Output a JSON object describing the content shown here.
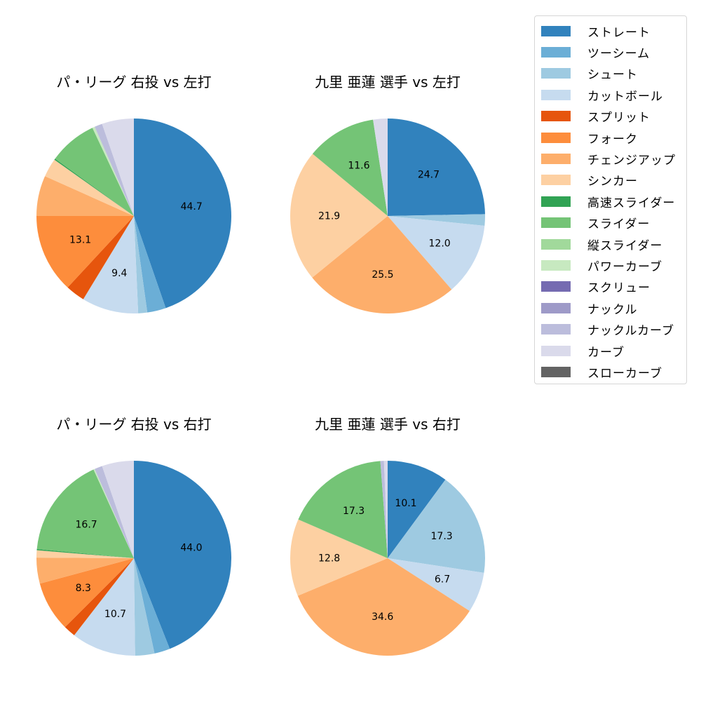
{
  "chart_data": [
    {
      "type": "pie",
      "title": "パ・リーグ 右投 vs 左打",
      "startangle": 90,
      "direction": "clockwise",
      "slices": [
        {
          "name": "ストレート",
          "value": 44.7,
          "label": "44.7"
        },
        {
          "name": "ツーシーム",
          "value": 3.1,
          "label": null
        },
        {
          "name": "シュート",
          "value": 1.5,
          "label": null
        },
        {
          "name": "カットボール",
          "value": 9.4,
          "label": "9.4"
        },
        {
          "name": "スプリット",
          "value": 3.2,
          "label": null
        },
        {
          "name": "フォーク",
          "value": 13.1,
          "label": "13.1"
        },
        {
          "name": "チェンジアップ",
          "value": 6.7,
          "label": null
        },
        {
          "name": "シンカー",
          "value": 3.1,
          "label": null
        },
        {
          "name": "高速スライダー",
          "value": 0.2,
          "label": null
        },
        {
          "name": "スライダー",
          "value": 8.0,
          "label": null
        },
        {
          "name": "パワーカーブ",
          "value": 0.4,
          "label": null
        },
        {
          "name": "ナックルカーブ",
          "value": 1.3,
          "label": null
        },
        {
          "name": "カーブ",
          "value": 5.3,
          "label": null
        }
      ]
    },
    {
      "type": "pie",
      "title": "九里 亜蓮 選手 vs 左打",
      "startangle": 90,
      "direction": "clockwise",
      "slices": [
        {
          "name": "ストレート",
          "value": 24.7,
          "label": "24.7"
        },
        {
          "name": "シュート",
          "value": 1.9,
          "label": null
        },
        {
          "name": "カットボール",
          "value": 12.0,
          "label": "12.0"
        },
        {
          "name": "チェンジアップ",
          "value": 25.5,
          "label": "25.5"
        },
        {
          "name": "シンカー",
          "value": 21.9,
          "label": "21.9"
        },
        {
          "name": "スライダー",
          "value": 11.6,
          "label": "11.6"
        },
        {
          "name": "カーブ",
          "value": 2.4,
          "label": null
        }
      ]
    },
    {
      "type": "pie",
      "title": "パ・リーグ 右投 vs 右打",
      "startangle": 90,
      "direction": "clockwise",
      "slices": [
        {
          "name": "ストレート",
          "value": 44.0,
          "label": "44.0"
        },
        {
          "name": "ツーシーム",
          "value": 2.6,
          "label": null
        },
        {
          "name": "シュート",
          "value": 3.2,
          "label": null
        },
        {
          "name": "カットボール",
          "value": 10.7,
          "label": "10.7"
        },
        {
          "name": "スプリット",
          "value": 2.0,
          "label": null
        },
        {
          "name": "フォーク",
          "value": 8.3,
          "label": "8.3"
        },
        {
          "name": "チェンジアップ",
          "value": 4.3,
          "label": null
        },
        {
          "name": "シンカー",
          "value": 1.2,
          "label": null
        },
        {
          "name": "高速スライダー",
          "value": 0.2,
          "label": null
        },
        {
          "name": "スライダー",
          "value": 16.7,
          "label": "16.7"
        },
        {
          "name": "パワーカーブ",
          "value": 0.2,
          "label": null
        },
        {
          "name": "ナックルカーブ",
          "value": 1.3,
          "label": null
        },
        {
          "name": "カーブ",
          "value": 5.3,
          "label": null
        }
      ]
    },
    {
      "type": "pie",
      "title": "九里 亜蓮 選手 vs 右打",
      "startangle": 90,
      "direction": "clockwise",
      "slices": [
        {
          "name": "ストレート",
          "value": 10.1,
          "label": "10.1"
        },
        {
          "name": "シュート",
          "value": 17.3,
          "label": "17.3"
        },
        {
          "name": "カットボール",
          "value": 6.7,
          "label": "6.7"
        },
        {
          "name": "チェンジアップ",
          "value": 34.6,
          "label": "34.6"
        },
        {
          "name": "シンカー",
          "value": 12.8,
          "label": "12.8"
        },
        {
          "name": "スライダー",
          "value": 17.3,
          "label": "17.3"
        },
        {
          "name": "ナックルカーブ",
          "value": 0.6,
          "label": null
        },
        {
          "name": "カーブ",
          "value": 0.6,
          "label": null
        }
      ]
    }
  ],
  "legend": {
    "position": "upper right",
    "items": [
      {
        "label": "ストレート",
        "color": "#3182bd"
      },
      {
        "label": "ツーシーム",
        "color": "#6baed6"
      },
      {
        "label": "シュート",
        "color": "#9ecae1"
      },
      {
        "label": "カットボール",
        "color": "#c6dbef"
      },
      {
        "label": "スプリット",
        "color": "#e6550d"
      },
      {
        "label": "フォーク",
        "color": "#fd8d3c"
      },
      {
        "label": "チェンジアップ",
        "color": "#fdae6b"
      },
      {
        "label": "シンカー",
        "color": "#fdd0a2"
      },
      {
        "label": "高速スライダー",
        "color": "#31a354"
      },
      {
        "label": "スライダー",
        "color": "#74c476"
      },
      {
        "label": "縦スライダー",
        "color": "#a1d99b"
      },
      {
        "label": "パワーカーブ",
        "color": "#c7e9c0"
      },
      {
        "label": "スクリュー",
        "color": "#756bb1"
      },
      {
        "label": "ナックル",
        "color": "#9e9ac8"
      },
      {
        "label": "ナックルカーブ",
        "color": "#bcbddc"
      },
      {
        "label": "カーブ",
        "color": "#dadaeb"
      },
      {
        "label": "スローカーブ",
        "color": "#636363"
      }
    ]
  }
}
